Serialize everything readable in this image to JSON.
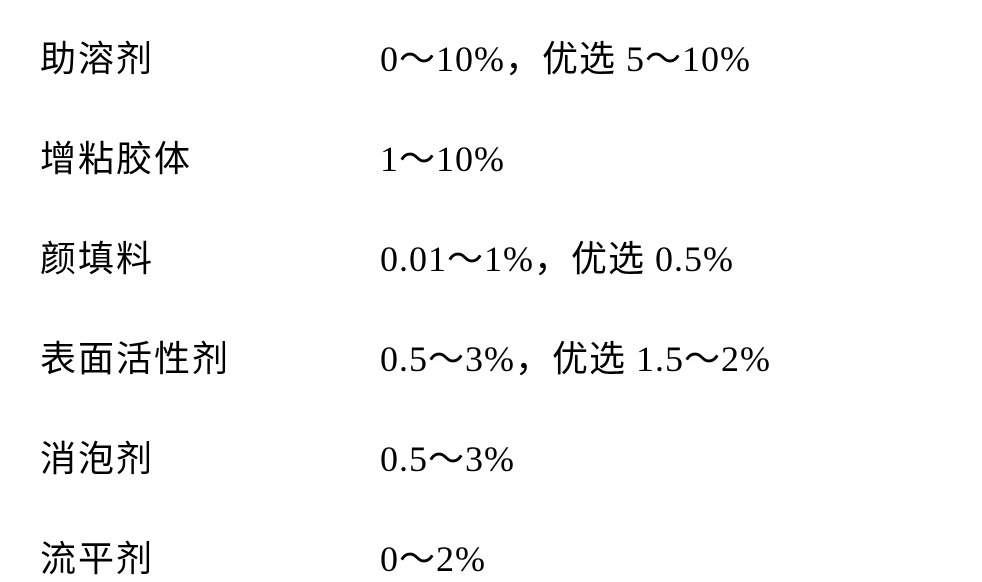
{
  "table": {
    "fontSize": 36,
    "fontColor": "#000000",
    "backgroundColor": "#ffffff",
    "rows": [
      {
        "label": "助溶剂",
        "value": "0～10%，优选 5～10%"
      },
      {
        "label": "增粘胶体",
        "value": "1～10%"
      },
      {
        "label": "颜填料",
        "value": "0.01～1%，优选 0.5%"
      },
      {
        "label": "表面活性剂",
        "value": "0.5～3%，优选 1.5～2%"
      },
      {
        "label": "消泡剂",
        "value": "0.5～3%"
      },
      {
        "label": "流平剂",
        "value": "0～2%"
      }
    ]
  }
}
